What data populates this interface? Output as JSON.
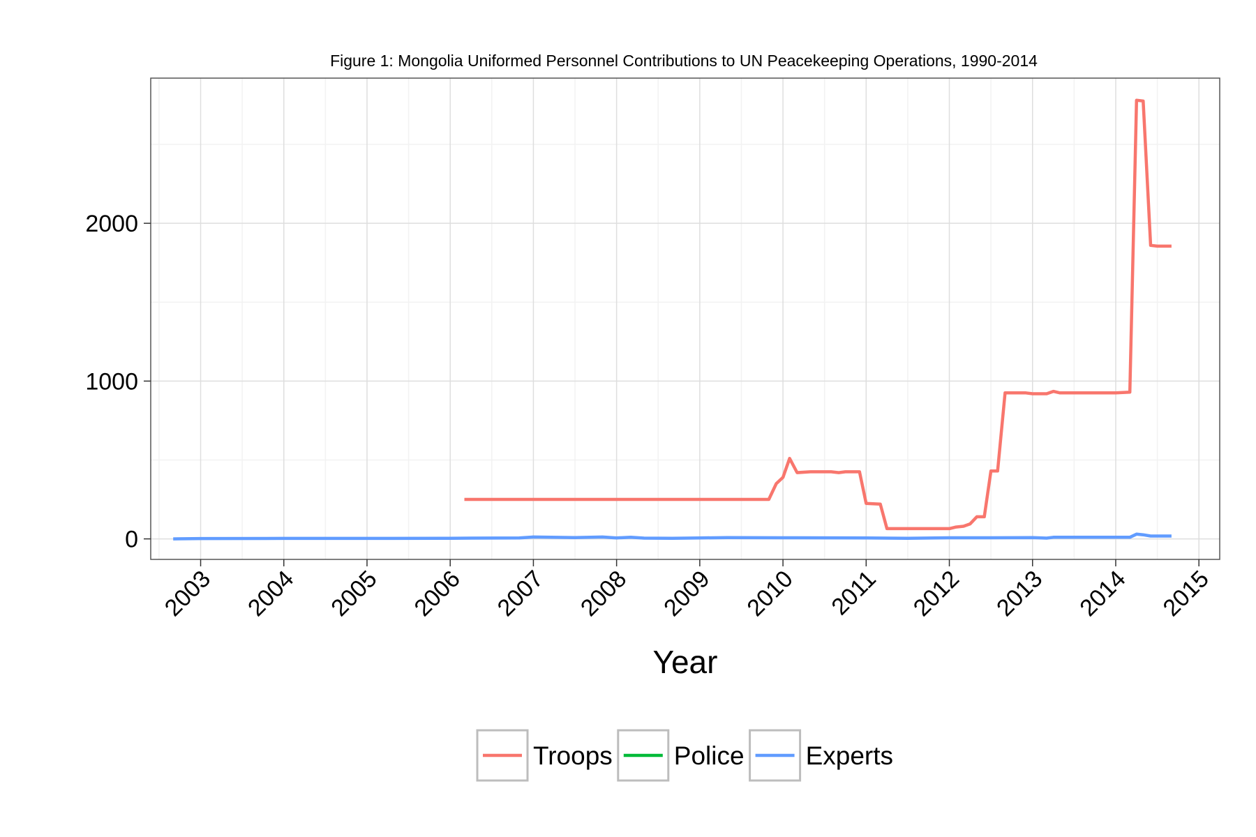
{
  "chart_data": {
    "type": "line",
    "title": "Figure 1: Mongolia Uniformed Personnel Contributions to UN Peacekeeping Operations, 1990-2014",
    "xlabel": "Year",
    "ylabel": "",
    "xlim": [
      2002.4,
      2015.25
    ],
    "ylim": [
      -130,
      2920
    ],
    "x_ticks": [
      "2003",
      "2004",
      "2005",
      "2006",
      "2007",
      "2008",
      "2009",
      "2010",
      "2011",
      "2012",
      "2013",
      "2014",
      "2015"
    ],
    "y_ticks": [
      "0",
      "1000",
      "2000"
    ],
    "grid": true,
    "legend_position": "bottom",
    "colors": {
      "Troops": "#F8766D",
      "Police": "#00BA38",
      "Experts": "#619CFF"
    },
    "series": [
      {
        "name": "Troops",
        "x": [
          2006.17,
          2009.83,
          2009.92,
          2010.0,
          2010.08,
          2010.17,
          2010.33,
          2010.58,
          2010.67,
          2010.75,
          2010.92,
          2011.0,
          2011.17,
          2011.25,
          2011.33,
          2011.5,
          2012.0,
          2012.08,
          2012.17,
          2012.25,
          2012.33,
          2012.42,
          2012.5,
          2012.58,
          2012.67,
          2012.92,
          2013.0,
          2013.17,
          2013.25,
          2013.33,
          2013.5,
          2014.0,
          2014.17,
          2014.25,
          2014.33,
          2014.42,
          2014.5,
          2014.67
        ],
        "y": [
          250,
          250,
          350,
          390,
          510,
          420,
          425,
          425,
          420,
          425,
          425,
          225,
          220,
          65,
          65,
          65,
          65,
          75,
          80,
          95,
          140,
          140,
          430,
          430,
          925,
          925,
          920,
          920,
          935,
          925,
          925,
          925,
          930,
          2780,
          2775,
          1860,
          1855,
          1855
        ]
      },
      {
        "name": "Police",
        "x": [],
        "y": []
      },
      {
        "name": "Experts",
        "x": [
          2002.67,
          2003.0,
          2004.0,
          2005.0,
          2005.33,
          2006.0,
          2006.25,
          2006.83,
          2007.0,
          2007.5,
          2007.83,
          2008.0,
          2008.17,
          2008.33,
          2008.67,
          2009.0,
          2009.33,
          2010.0,
          2011.0,
          2011.5,
          2012.0,
          2012.5,
          2013.0,
          2013.17,
          2013.25,
          2014.0,
          2014.17,
          2014.25,
          2014.33,
          2014.42,
          2014.67
        ],
        "y": [
          0,
          2,
          3,
          3,
          3,
          4,
          5,
          6,
          12,
          8,
          12,
          6,
          10,
          5,
          4,
          6,
          8,
          7,
          6,
          4,
          7,
          7,
          8,
          5,
          10,
          10,
          10,
          30,
          26,
          18,
          18
        ]
      }
    ]
  }
}
